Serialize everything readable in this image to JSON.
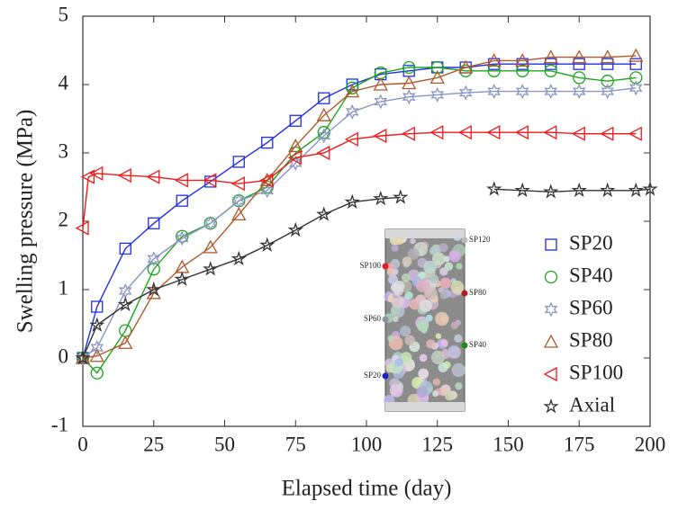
{
  "chart_data": {
    "type": "line",
    "xlabel": "Elapsed time (day)",
    "ylabel": "Swelling pressure (MPa)",
    "xlim": [
      0,
      200
    ],
    "xticks": [
      0,
      25,
      50,
      75,
      100,
      125,
      150,
      175,
      200
    ],
    "ylim": [
      -1,
      5
    ],
    "yticks": [
      -1,
      0,
      1,
      2,
      3,
      4,
      5
    ],
    "legend": "lower right",
    "series": [
      {
        "name": "SP20",
        "color": "#1f2ee8",
        "marker": "square",
        "x": [
          0,
          5,
          15,
          25,
          35,
          45,
          55,
          65,
          75,
          85,
          95,
          105,
          115,
          125,
          135,
          145,
          155,
          165,
          175,
          185,
          195
        ],
        "values": [
          0,
          0.75,
          1.6,
          1.97,
          2.3,
          2.58,
          2.87,
          3.15,
          3.47,
          3.8,
          4.0,
          4.15,
          4.2,
          4.25,
          4.25,
          4.3,
          4.3,
          4.3,
          4.3,
          4.3,
          4.3
        ]
      },
      {
        "name": "SP40",
        "color": "#1ea51e",
        "marker": "circle",
        "x": [
          0,
          5,
          15,
          25,
          35,
          45,
          55,
          65,
          75,
          85,
          95,
          105,
          115,
          125,
          135,
          145,
          155,
          165,
          175,
          185,
          195
        ],
        "values": [
          0,
          -0.22,
          0.4,
          1.3,
          1.78,
          1.97,
          2.3,
          2.5,
          3.0,
          3.3,
          3.95,
          4.17,
          4.25,
          4.25,
          4.2,
          4.2,
          4.2,
          4.2,
          4.1,
          4.05,
          4.1
        ]
      },
      {
        "name": "SP60",
        "color": "#8a93c4",
        "marker": "hexagram",
        "x": [
          0,
          5,
          15,
          25,
          35,
          45,
          55,
          65,
          75,
          85,
          95,
          105,
          115,
          125,
          135,
          145,
          155,
          165,
          175,
          185,
          195
        ],
        "values": [
          0,
          0.15,
          0.98,
          1.45,
          1.75,
          1.97,
          2.3,
          2.45,
          2.85,
          3.25,
          3.6,
          3.75,
          3.82,
          3.85,
          3.88,
          3.9,
          3.9,
          3.9,
          3.9,
          3.9,
          3.95
        ]
      },
      {
        "name": "SP80",
        "color": "#b0582a",
        "marker": "triangle",
        "x": [
          0,
          5,
          15,
          25,
          35,
          45,
          55,
          65,
          75,
          85,
          95,
          105,
          115,
          125,
          135,
          145,
          155,
          165,
          175,
          185,
          195
        ],
        "values": [
          0,
          0.03,
          0.22,
          0.95,
          1.33,
          1.62,
          2.1,
          2.6,
          3.1,
          3.55,
          3.9,
          4.0,
          4.02,
          4.1,
          4.25,
          4.35,
          4.35,
          4.4,
          4.4,
          4.4,
          4.42
        ]
      },
      {
        "name": "SP100",
        "color": "#f01818",
        "marker": "left-triangle",
        "x": [
          0,
          2,
          5,
          15,
          25,
          35,
          45,
          55,
          65,
          75,
          85,
          95,
          105,
          115,
          125,
          135,
          145,
          155,
          165,
          175,
          185,
          195
        ],
        "values": [
          1.9,
          2.65,
          2.7,
          2.67,
          2.65,
          2.6,
          2.6,
          2.55,
          2.6,
          2.93,
          3.0,
          3.2,
          3.25,
          3.28,
          3.3,
          3.3,
          3.3,
          3.3,
          3.3,
          3.28,
          3.28,
          3.28
        ]
      },
      {
        "name": "Axial",
        "color": "#333333",
        "marker": "star",
        "x": [
          0,
          5,
          15,
          25,
          35,
          45,
          55,
          65,
          75,
          85,
          95,
          105,
          112,
          128,
          145,
          155,
          165,
          175,
          185,
          195,
          200
        ],
        "values": [
          0,
          0.48,
          0.78,
          1.0,
          1.15,
          1.3,
          1.45,
          1.65,
          1.87,
          2.1,
          2.28,
          2.33,
          2.35,
          null,
          2.47,
          2.45,
          2.43,
          2.45,
          2.45,
          2.45,
          2.47
        ]
      }
    ],
    "inset_labels": [
      "SP120",
      "SP100",
      "SP80",
      "SP60",
      "SP40",
      "SP20"
    ]
  }
}
